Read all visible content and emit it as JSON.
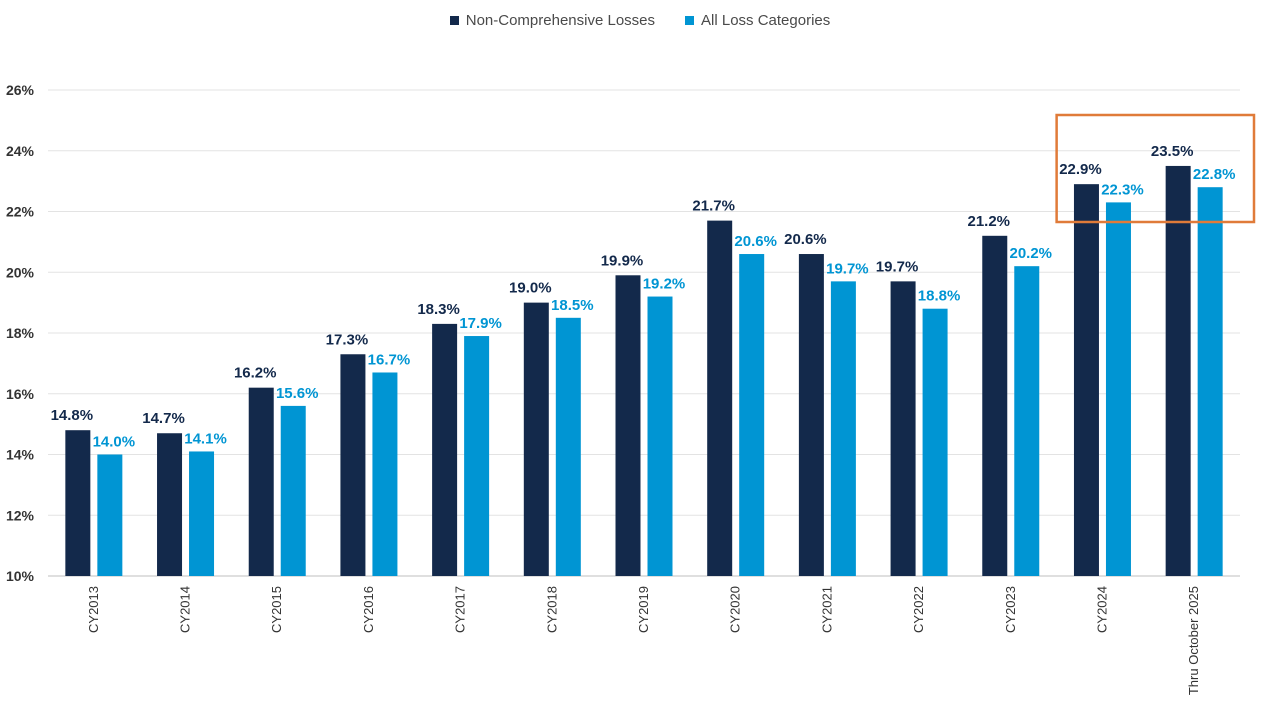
{
  "chart_data": {
    "type": "bar",
    "categories": [
      "CY2013",
      "CY2014",
      "CY2015",
      "CY2016",
      "CY2017",
      "CY2018",
      "CY2019",
      "CY2020",
      "CY2021",
      "CY2022",
      "CY2023",
      "CY2024",
      "Thru October 2025"
    ],
    "series": [
      {
        "name": "Non-Comprehensive Losses",
        "color": "#13294B",
        "values": [
          14.8,
          14.7,
          16.2,
          17.3,
          18.3,
          19.0,
          19.9,
          21.7,
          20.6,
          19.7,
          21.2,
          22.9,
          23.5
        ],
        "labels": [
          "14.8%",
          "14.7%",
          "16.2%",
          "17.3%",
          "18.3%",
          "19.0%",
          "19.9%",
          "21.7%",
          "20.6%",
          "19.7%",
          "21.2%",
          "22.9%",
          "23.5%"
        ]
      },
      {
        "name": "All Loss Categories",
        "color": "#0095D3",
        "values": [
          14.0,
          14.1,
          15.6,
          16.7,
          17.9,
          18.5,
          19.2,
          20.6,
          19.7,
          18.8,
          20.2,
          22.3,
          22.8
        ],
        "labels": [
          "14.0%",
          "14.1%",
          "15.6%",
          "16.7%",
          "17.9%",
          "18.5%",
          "19.2%",
          "20.6%",
          "19.7%",
          "18.8%",
          "20.2%",
          "22.3%",
          "22.8%"
        ]
      }
    ],
    "yticks": [
      "10%",
      "12%",
      "14%",
      "16%",
      "18%",
      "20%",
      "22%",
      "24%",
      "26%"
    ],
    "ylim": [
      10,
      26
    ],
    "grid": true,
    "legend_position": "top-center",
    "highlight": {
      "categories": [
        "CY2024",
        "Thru October 2025"
      ],
      "color": "#E07B39"
    }
  }
}
